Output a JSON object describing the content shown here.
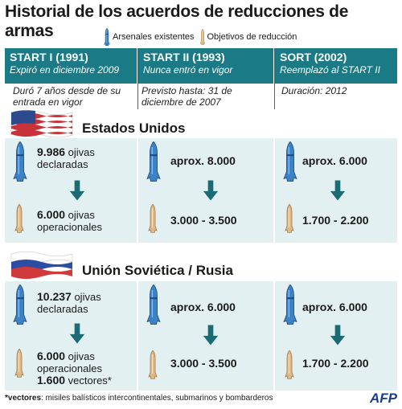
{
  "title": "Historial de los acuerdos de reducciones de armas",
  "legend": {
    "existing": "Arsenales existentes",
    "target": "Objetivos de reducción",
    "existing_icon": "missile-blue-icon",
    "target_icon": "missile-tan-icon"
  },
  "colors": {
    "header": "#1a7b86",
    "panel": "#e3f0f2",
    "arrow": "#1a6b74"
  },
  "treaties": [
    {
      "name": "START I (1991)",
      "status": "Expiró en diciembre 2009",
      "note": "Duró 7 años desde de su entrada en vigor"
    },
    {
      "name": "START II (1993)",
      "status": "Nunca entró en vigor",
      "note": "Previsto hasta: 31 de diciembre de 2007"
    },
    {
      "name": "SORT (2002)",
      "status": "Reemplazó al START II",
      "note": "Duración: 2012"
    }
  ],
  "countries": [
    {
      "name": "Estados Unidos",
      "flag_icon": "usa-flag-icon",
      "cells": [
        {
          "top_num": "9.986",
          "top_txt1": "ojivas",
          "top_txt2": "declaradas",
          "bottom_num": "6.000",
          "bottom_txt1": "ojivas",
          "bottom_txt2": "operacionales",
          "extra_num": "",
          "extra_txt": ""
        },
        {
          "top": "aprox. 8.000",
          "bottom": "3.000 - 3.500"
        },
        {
          "top": "aprox. 6.000",
          "bottom": "1.700 - 2.200"
        }
      ]
    },
    {
      "name": "Unión Soviética / Rusia",
      "flag_icon": "russia-flag-icon",
      "cells": [
        {
          "top_num": "10.237",
          "top_txt1": "ojivas",
          "top_txt2": "declaradas",
          "bottom_num": "6.000",
          "bottom_txt1": "ojivas",
          "bottom_txt2": "operacionales",
          "extra_num": "1.600",
          "extra_txt": "vectores*"
        },
        {
          "top": "aprox. 6.000",
          "bottom": "3.000 - 3.500"
        },
        {
          "top": "aprox. 6.000",
          "bottom": "1.700 - 2.200"
        }
      ]
    }
  ],
  "footer": {
    "term": "*vectores",
    "text": ": misiles balísticos intercontinentales, submarinos y bombarderos"
  },
  "source": "AFP",
  "chart_data": {
    "type": "table",
    "title": "Historial de los acuerdos de reducciones de armas",
    "columns": [
      "START I (1991)",
      "START II (1993)",
      "SORT (2002)"
    ],
    "series": [
      {
        "name": "Arsenales existentes",
        "values": {
          "Estados Unidos": [
            "9.986",
            "aprox. 8.000",
            "aprox. 6.000"
          ],
          "Unión Soviética / Rusia": [
            "10.237",
            "aprox. 6.000",
            "aprox. 6.000"
          ]
        }
      },
      {
        "name": "Objetivos de reducción",
        "values": {
          "Estados Unidos": [
            "6.000",
            "3.000 - 3.500",
            "1.700 - 2.200"
          ],
          "Unión Soviética / Rusia": [
            "6.000",
            "3.000 - 3.500",
            "1.700 - 2.200"
          ]
        }
      }
    ]
  }
}
